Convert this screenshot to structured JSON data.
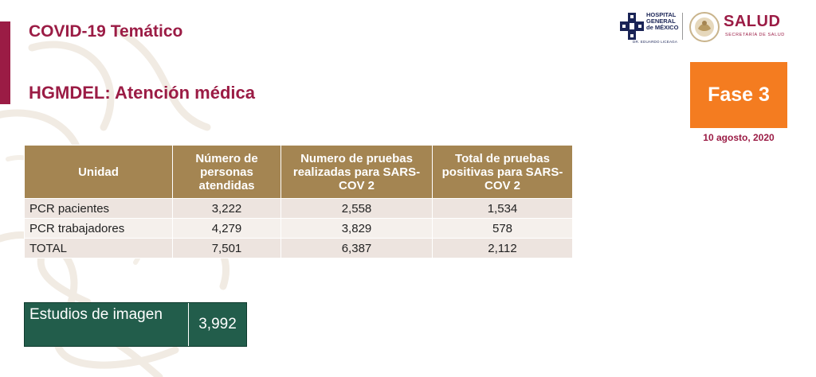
{
  "header": {
    "title": "COVID-19 Temático",
    "subtitle": "HGMDEL: Atención médica"
  },
  "logos": {
    "hospital_lines": [
      "HOSPITAL",
      "GENERAL",
      "de MÉXICO"
    ],
    "hospital_sub": "DR. EDUARDO LICEAGA",
    "salud_title": "SALUD",
    "salud_sub": "SECRETARÍA DE SALUD"
  },
  "phase": {
    "label": "Fase 3",
    "date": "10 agosto, 2020"
  },
  "table": {
    "headers": [
      "Unidad",
      "Número de personas atendidas",
      "Numero de pruebas realizadas para SARS-COV 2",
      "Total de pruebas positivas para SARS-COV 2"
    ],
    "rows": [
      [
        "PCR pacientes",
        "3,222",
        "2,558",
        "1,534"
      ],
      [
        "PCR trabajadores",
        "4,279",
        "3,829",
        "578"
      ],
      [
        "TOTAL",
        "7,501",
        "6,387",
        "2,112"
      ]
    ]
  },
  "estudios": {
    "label": "Estudios de imagen",
    "value": "3,992"
  },
  "colors": {
    "brand": "#9b1c45",
    "header_fill": "#a48552",
    "phase_fill": "#f47c20",
    "estudios_fill": "#225d4b"
  }
}
